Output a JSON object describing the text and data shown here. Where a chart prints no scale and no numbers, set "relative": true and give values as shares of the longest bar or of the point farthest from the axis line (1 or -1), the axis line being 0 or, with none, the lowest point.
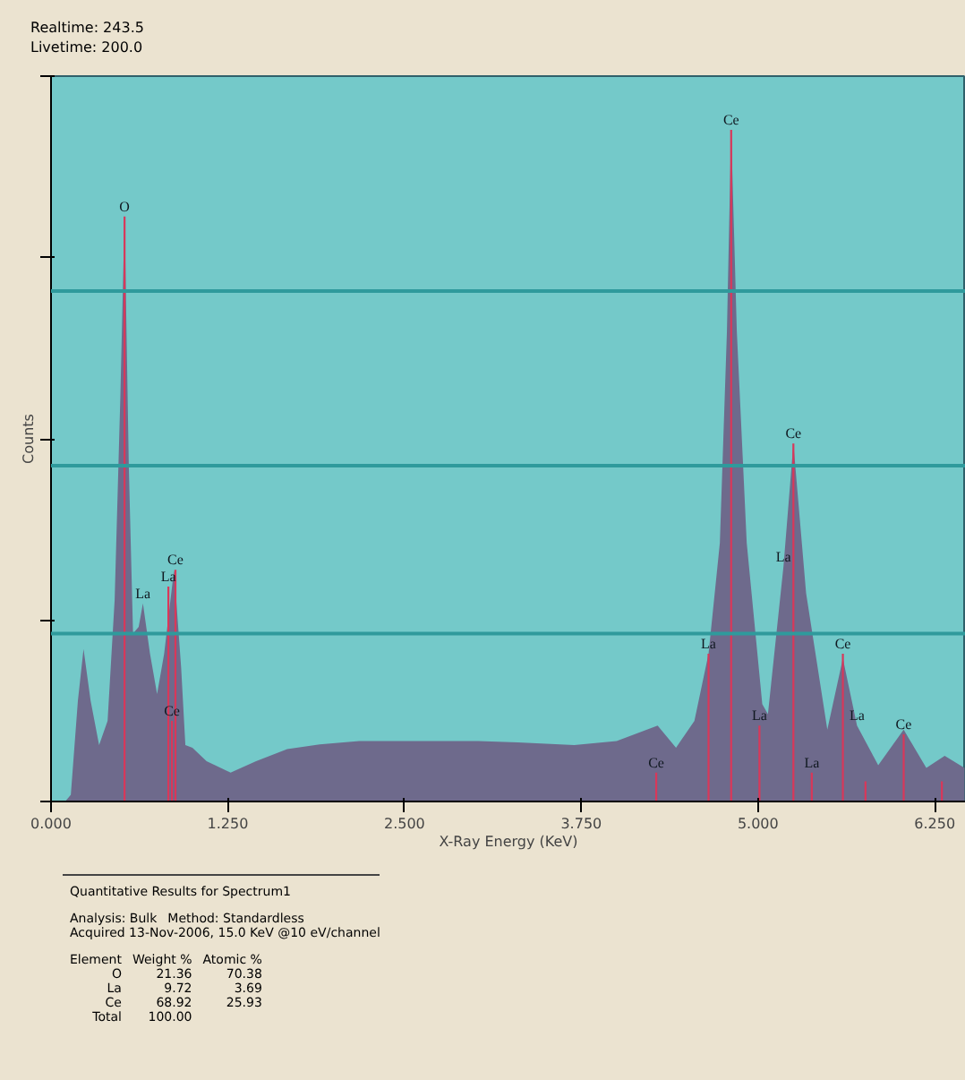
{
  "chart_data": {
    "type": "area",
    "relative": true,
    "xlabel": "X-Ray Energy (KeV)",
    "ylabel": "Counts",
    "xlim": [
      0,
      6.47
    ],
    "ref_lines": [
      {
        "axis": "y",
        "value": 0.25,
        "color": "#2f9a9c"
      },
      {
        "axis": "y",
        "value": 0.5,
        "color": "#2f9a9c"
      },
      {
        "axis": "y",
        "value": 0.76,
        "color": "#2f9a9c"
      }
    ],
    "xticks": [
      {
        "value": 0,
        "label": "0.000"
      },
      {
        "value": 1.25,
        "label": "1.250"
      },
      {
        "value": 2.5,
        "label": "2.500"
      },
      {
        "value": 3.75,
        "label": "3.750"
      },
      {
        "value": 5,
        "label": "5.000"
      },
      {
        "value": 6.25,
        "label": "6.250"
      }
    ],
    "series": [
      {
        "color": "#6e6a8c",
        "x": [
          0,
          0.1,
          0.14,
          0.19,
          0.23,
          0.28,
          0.34,
          0.4,
          0.45,
          0.49,
          0.52,
          0.55,
          0.58,
          0.62,
          0.65,
          0.7,
          0.75,
          0.8,
          0.87,
          0.92,
          0.95,
          1.0,
          1.1,
          1.27,
          1.45,
          1.67,
          1.9,
          2.18,
          2.5,
          2.8,
          3.02,
          3.3,
          3.7,
          4.0,
          4.29,
          4.42,
          4.55,
          4.65,
          4.73,
          4.78,
          4.81,
          4.85,
          4.92,
          5.03,
          5.07,
          5.18,
          5.25,
          5.34,
          5.49,
          5.6,
          5.7,
          5.85,
          6.03,
          6.19,
          6.32,
          6.46
        ],
        "values": [
          0,
          0,
          0.01,
          0.15,
          0.227,
          0.15,
          0.084,
          0.12,
          0.3,
          0.6,
          0.871,
          0.5,
          0.25,
          0.26,
          0.295,
          0.22,
          0.16,
          0.22,
          0.345,
          0.2,
          0.084,
          0.08,
          0.06,
          0.043,
          0.06,
          0.078,
          0.085,
          0.09,
          0.09,
          0.09,
          0.09,
          0.088,
          0.084,
          0.09,
          0.113,
          0.08,
          0.12,
          0.22,
          0.385,
          0.7,
          1.0,
          0.7,
          0.385,
          0.145,
          0.13,
          0.35,
          0.533,
          0.31,
          0.107,
          0.213,
          0.113,
          0.054,
          0.107,
          0.05,
          0.068,
          0.05
        ]
      },
      {
        "type": "bar",
        "color": "#d8385a",
        "x": [
          0.52,
          0.83,
          0.855,
          0.88,
          4.28,
          4.65,
          4.81,
          5.01,
          5.25,
          5.38,
          5.6,
          5.76,
          6.03,
          6.3
        ],
        "values": [
          0.871,
          0.32,
          0.12,
          0.345,
          0.043,
          0.22,
          1.0,
          0.113,
          0.533,
          0.043,
          0.22,
          0.03,
          0.1,
          0.03
        ]
      }
    ],
    "annotations": [
      "Realtime: 243.5",
      "Livetime: 200.0",
      {
        "text": "O",
        "x": 0.52,
        "y": 0.871
      },
      {
        "text": "Ce",
        "x": 0.88,
        "y": 0.345
      },
      {
        "text": "La",
        "x": 0.83,
        "y": 0.32
      },
      {
        "text": "La",
        "x": 0.65,
        "y": 0.295
      },
      {
        "text": "Ce",
        "x": 0.855,
        "y": 0.12
      },
      {
        "text": "Ce",
        "x": 4.28,
        "y": 0.043
      },
      {
        "text": "La",
        "x": 4.65,
        "y": 0.22
      },
      {
        "text": "Ce",
        "x": 4.81,
        "y": 1.0
      },
      {
        "text": "La",
        "x": 5.01,
        "y": 0.113
      },
      {
        "text": "La",
        "x": 5.18,
        "y": 0.35
      },
      {
        "text": "Ce",
        "x": 5.25,
        "y": 0.533
      },
      {
        "text": "La",
        "x": 5.38,
        "y": 0.043
      },
      {
        "text": "Ce",
        "x": 5.6,
        "y": 0.22
      },
      {
        "text": "La",
        "x": 5.7,
        "y": 0.113
      },
      {
        "text": "Ce",
        "x": 6.03,
        "y": 0.1
      },
      "Quantitative Results for Spectrum1",
      "Analysis: Bulk   Method: Standardless",
      "Acquired 13-Nov-2006, 15.0 KeV @10 eV/channel",
      "Element  Weight %  Atomic %",
      "O  21.36  70.38",
      "La  9.72  3.69",
      "Ce  68.92  25.93",
      "Total  100.00"
    ]
  }
}
